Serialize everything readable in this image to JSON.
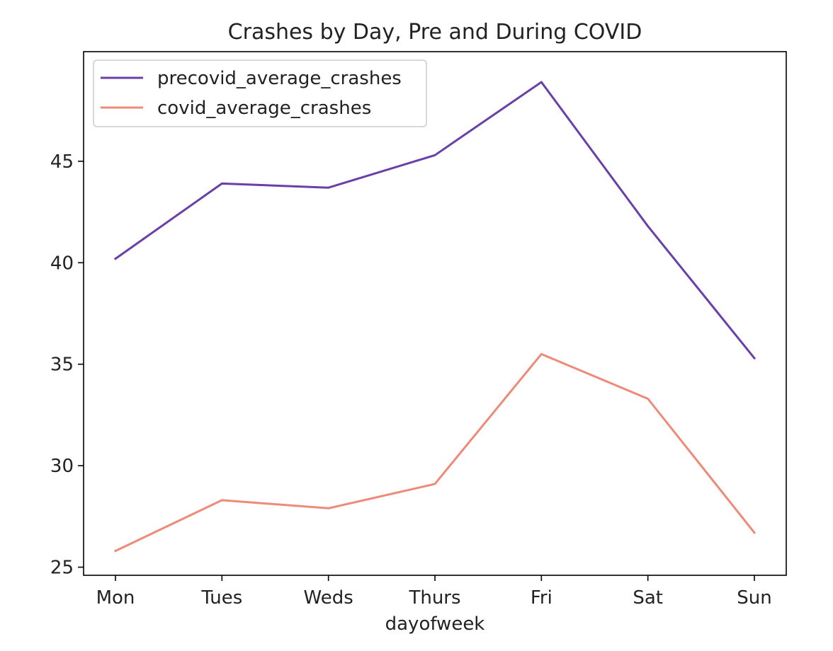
{
  "chart_data": {
    "type": "line",
    "title": "Crashes by Day, Pre and During COVID",
    "xlabel": "dayofweek",
    "ylabel": "",
    "categories": [
      "Mon",
      "Tues",
      "Weds",
      "Thurs",
      "Fri",
      "Sat",
      "Sun"
    ],
    "yticks": [
      25,
      30,
      35,
      40,
      45
    ],
    "ylim": [
      24.6,
      50.4
    ],
    "grid": false,
    "legend_position": "top-left",
    "series": [
      {
        "name": "precovid_average_crashes",
        "color": "#6a3fa7",
        "values": [
          40.2,
          43.9,
          43.7,
          45.3,
          48.9,
          41.8,
          35.3
        ]
      },
      {
        "name": "covid_average_crashes",
        "color": "#ef8a78",
        "values": [
          25.8,
          28.3,
          27.9,
          29.1,
          35.5,
          33.3,
          26.7
        ]
      }
    ]
  }
}
